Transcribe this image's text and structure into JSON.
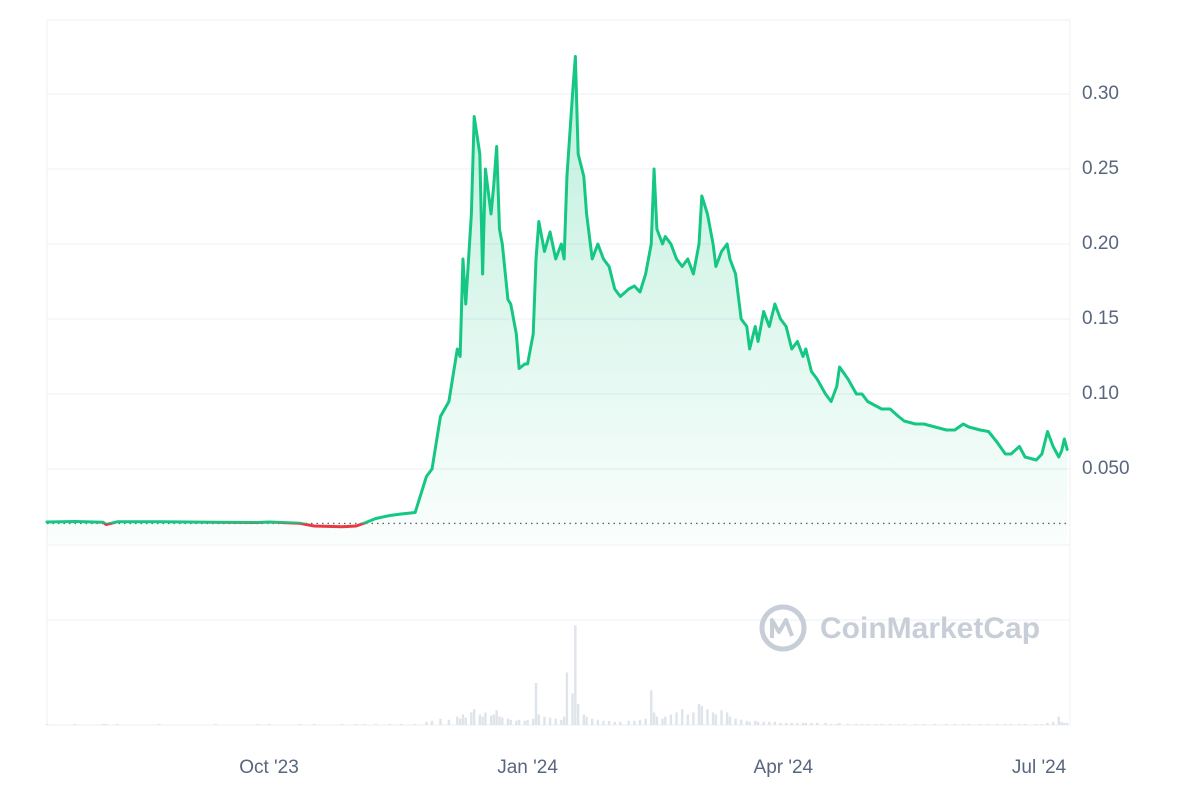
{
  "chart_data": {
    "type": "line",
    "watermark": "CoinMarketCap",
    "color": "#16c784",
    "down_color": "#ea3943",
    "baseline": 0.0137,
    "xlim": [
      0,
      364
    ],
    "xticks": [
      {
        "value": 79,
        "label": "Oct '23"
      },
      {
        "value": 171,
        "label": "Jan '24"
      },
      {
        "value": 262,
        "label": "Apr '24"
      },
      {
        "value": 353,
        "label": "Jul '24"
      }
    ],
    "ylim": [
      0,
      0.35
    ],
    "yticks": [
      {
        "value": 0.3,
        "label": "0.30"
      },
      {
        "value": 0.25,
        "label": "0.25"
      },
      {
        "value": 0.2,
        "label": "0.20"
      },
      {
        "value": 0.15,
        "label": "0.15"
      },
      {
        "value": 0.1,
        "label": "0.10"
      },
      {
        "value": 0.05,
        "label": "0.050"
      }
    ],
    "grid": true,
    "x": [
      0,
      10,
      20,
      21,
      25,
      40,
      60,
      75,
      79,
      90,
      95,
      105,
      110,
      113,
      117,
      122,
      126,
      131,
      135,
      137,
      140,
      143,
      146,
      147,
      148,
      149,
      151,
      152,
      154,
      155,
      156,
      158,
      159,
      160,
      161,
      162,
      164,
      165,
      167,
      168,
      170,
      171,
      173,
      174,
      175,
      177,
      179,
      181,
      183,
      184,
      185,
      187,
      188,
      189,
      191,
      192,
      194,
      196,
      198,
      200,
      202,
      204,
      207,
      209,
      211,
      213,
      215,
      216,
      217,
      219,
      220,
      222,
      224,
      226,
      228,
      230,
      232,
      233,
      235,
      237,
      238,
      240,
      242,
      243,
      245,
      247,
      249,
      250,
      252,
      253,
      255,
      257,
      259,
      261,
      263,
      265,
      267,
      269,
      270,
      272,
      274,
      277,
      279,
      281,
      282,
      285,
      288,
      290,
      292,
      295,
      297,
      300,
      303,
      305,
      309,
      312,
      316,
      320,
      323,
      326,
      328,
      332,
      335,
      338,
      341,
      343,
      346,
      348,
      352,
      354,
      356,
      358,
      360,
      361,
      362,
      363
    ],
    "values": [
      0.0147,
      0.015,
      0.0145,
      0.013,
      0.0148,
      0.0148,
      0.0145,
      0.0143,
      0.0147,
      0.0138,
      0.012,
      0.0115,
      0.012,
      0.014,
      0.017,
      0.019,
      0.02,
      0.021,
      0.045,
      0.05,
      0.085,
      0.095,
      0.13,
      0.125,
      0.19,
      0.16,
      0.22,
      0.285,
      0.26,
      0.18,
      0.25,
      0.22,
      0.24,
      0.265,
      0.21,
      0.2,
      0.163,
      0.16,
      0.14,
      0.117,
      0.12,
      0.12,
      0.14,
      0.19,
      0.215,
      0.195,
      0.208,
      0.19,
      0.2,
      0.19,
      0.245,
      0.3,
      0.325,
      0.26,
      0.245,
      0.22,
      0.19,
      0.2,
      0.19,
      0.185,
      0.17,
      0.165,
      0.17,
      0.172,
      0.168,
      0.18,
      0.2,
      0.25,
      0.21,
      0.2,
      0.205,
      0.2,
      0.19,
      0.185,
      0.19,
      0.18,
      0.2,
      0.232,
      0.22,
      0.2,
      0.185,
      0.195,
      0.2,
      0.19,
      0.18,
      0.15,
      0.145,
      0.13,
      0.145,
      0.135,
      0.155,
      0.145,
      0.16,
      0.15,
      0.145,
      0.13,
      0.135,
      0.125,
      0.13,
      0.115,
      0.11,
      0.1,
      0.095,
      0.105,
      0.118,
      0.11,
      0.1,
      0.1,
      0.095,
      0.092,
      0.09,
      0.09,
      0.085,
      0.082,
      0.08,
      0.08,
      0.078,
      0.076,
      0.076,
      0.08,
      0.078,
      0.076,
      0.075,
      0.068,
      0.06,
      0.06,
      0.065,
      0.058,
      0.056,
      0.06,
      0.075,
      0.065,
      0.058,
      0.062,
      0.07,
      0.063
    ],
    "volume": {
      "color": "#dfe4ea",
      "ylim": [
        0,
        100
      ],
      "values": [
        1,
        1,
        1,
        1,
        1,
        1,
        1,
        1,
        1,
        1,
        1,
        1,
        1,
        1,
        1,
        1,
        1,
        1,
        3,
        4,
        6,
        5,
        8,
        6,
        10,
        7,
        12,
        15,
        10,
        8,
        12,
        9,
        10,
        14,
        8,
        7,
        6,
        5,
        4,
        5,
        4,
        5,
        6,
        40,
        10,
        8,
        7,
        6,
        5,
        8,
        50,
        30,
        95,
        20,
        10,
        8,
        6,
        5,
        4,
        4,
        3,
        3,
        4,
        4,
        5,
        6,
        33,
        12,
        8,
        6,
        8,
        10,
        12,
        15,
        10,
        12,
        20,
        18,
        15,
        12,
        10,
        14,
        12,
        8,
        6,
        5,
        4,
        3,
        4,
        3,
        3,
        3,
        3,
        2,
        2,
        2,
        2,
        2,
        2,
        2,
        2,
        2,
        1,
        1,
        2,
        1,
        1,
        1,
        1,
        1,
        1,
        1,
        1,
        1,
        1,
        1,
        1,
        1,
        1,
        1,
        1,
        1,
        1,
        1,
        1,
        1,
        1,
        1,
        1,
        1,
        2,
        3,
        8,
        3,
        2,
        2
      ]
    }
  }
}
